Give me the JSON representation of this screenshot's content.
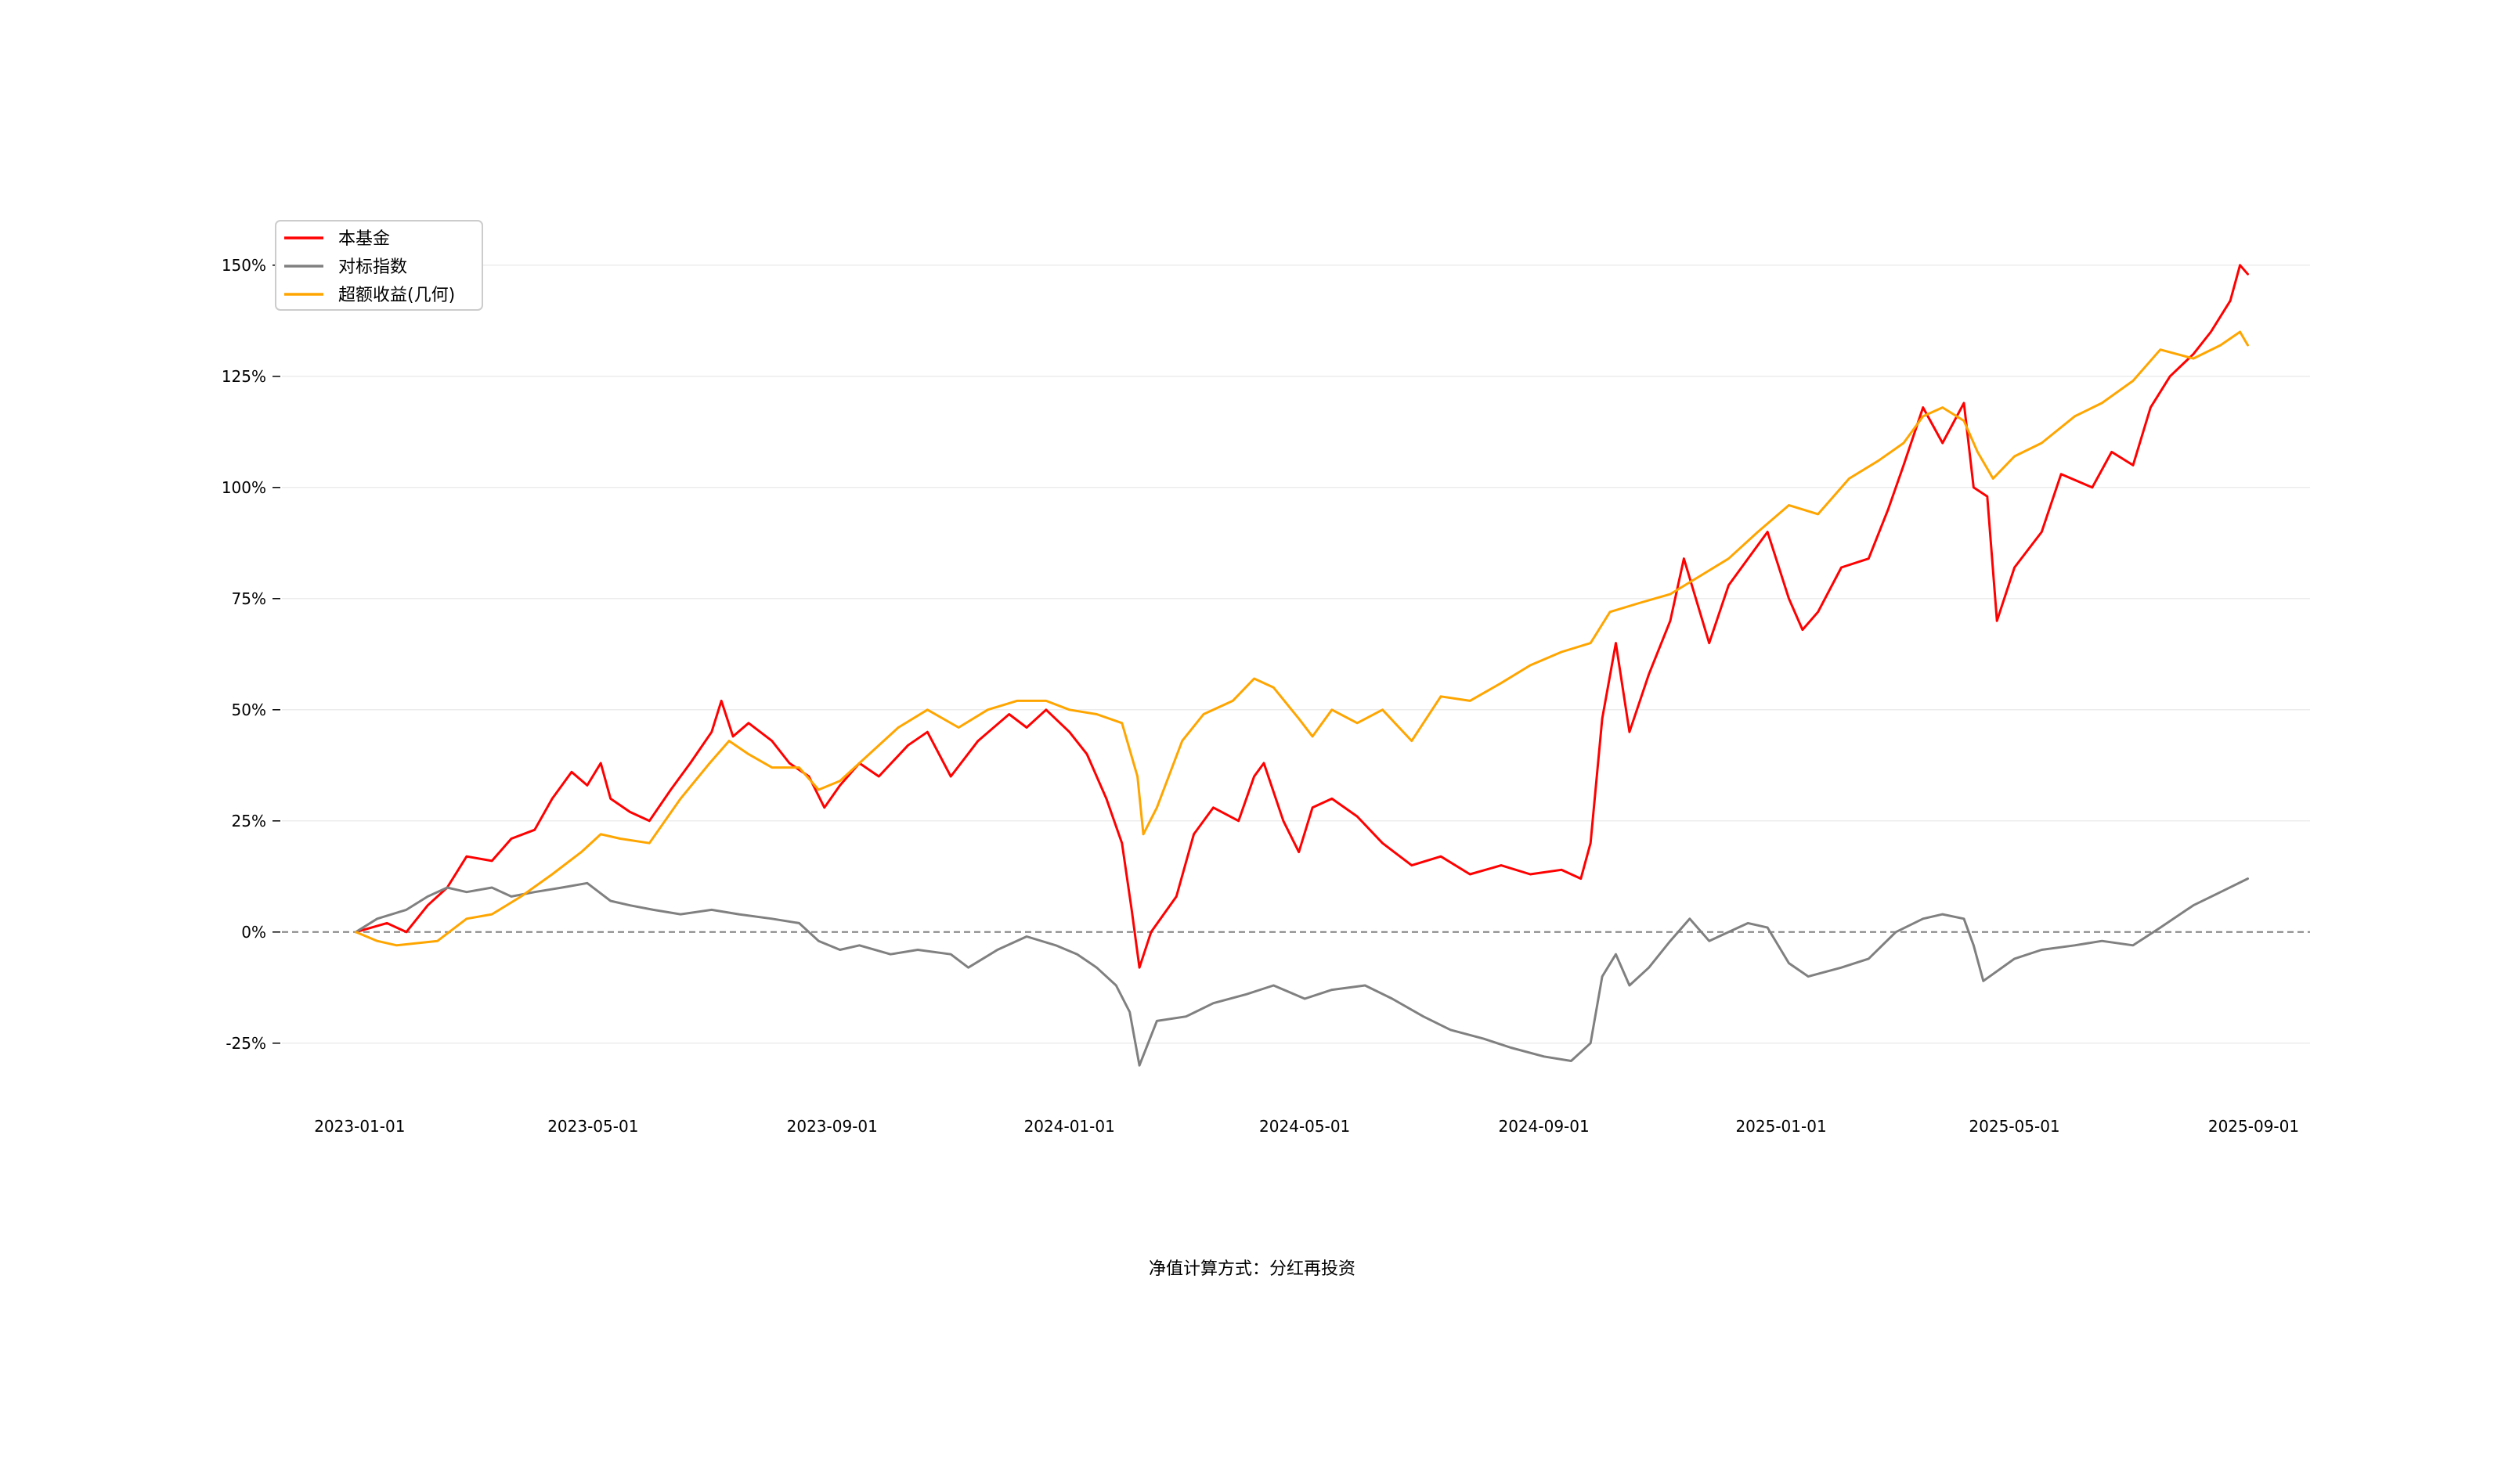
{
  "chart_data": {
    "type": "line",
    "title": "",
    "xlabel": "",
    "ylabel": "",
    "footnote": "净值计算方式：分红再投资",
    "x_tick_labels": [
      "2023-01-01",
      "2023-05-01",
      "2023-09-01",
      "2024-01-01",
      "2024-05-01",
      "2024-09-01",
      "2025-01-01",
      "2025-05-01",
      "2025-09-01"
    ],
    "y_tick_labels": [
      "-25%",
      "0%",
      "25%",
      "50%",
      "75%",
      "100%",
      "125%",
      "150%"
    ],
    "y_ticks": [
      -25,
      0,
      25,
      50,
      75,
      100,
      125,
      150
    ],
    "xlim": [
      "2022-11-22",
      "2025-09-30"
    ],
    "ylim": [
      -40,
      160
    ],
    "zero_line": true,
    "grid": "horizontal",
    "legend_position": "top-left",
    "series": [
      {
        "name": "本基金",
        "color": "#ff0000",
        "points": [
          [
            "2022-12-30",
            0
          ],
          [
            "2023-01-15",
            2
          ],
          [
            "2023-01-25",
            0
          ],
          [
            "2023-02-05",
            6
          ],
          [
            "2023-02-15",
            10
          ],
          [
            "2023-02-25",
            17
          ],
          [
            "2023-03-10",
            16
          ],
          [
            "2023-03-20",
            21
          ],
          [
            "2023-04-01",
            23
          ],
          [
            "2023-04-10",
            30
          ],
          [
            "2023-04-20",
            36
          ],
          [
            "2023-04-28",
            33
          ],
          [
            "2023-05-05",
            38
          ],
          [
            "2023-05-10",
            30
          ],
          [
            "2023-05-20",
            27
          ],
          [
            "2023-05-30",
            25
          ],
          [
            "2023-06-10",
            32
          ],
          [
            "2023-06-20",
            38
          ],
          [
            "2023-07-01",
            45
          ],
          [
            "2023-07-06",
            52
          ],
          [
            "2023-07-12",
            44
          ],
          [
            "2023-07-20",
            47
          ],
          [
            "2023-08-01",
            43
          ],
          [
            "2023-08-10",
            38
          ],
          [
            "2023-08-20",
            35
          ],
          [
            "2023-08-28",
            28
          ],
          [
            "2023-09-05",
            33
          ],
          [
            "2023-09-15",
            38
          ],
          [
            "2023-09-25",
            35
          ],
          [
            "2023-10-10",
            42
          ],
          [
            "2023-10-20",
            45
          ],
          [
            "2023-11-01",
            35
          ],
          [
            "2023-11-15",
            43
          ],
          [
            "2023-12-01",
            49
          ],
          [
            "2023-12-10",
            46
          ],
          [
            "2023-12-20",
            50
          ],
          [
            "2024-01-01",
            45
          ],
          [
            "2024-01-10",
            40
          ],
          [
            "2024-01-20",
            30
          ],
          [
            "2024-01-28",
            20
          ],
          [
            "2024-02-02",
            5
          ],
          [
            "2024-02-06",
            -8
          ],
          [
            "2024-02-12",
            0
          ],
          [
            "2024-02-25",
            8
          ],
          [
            "2024-03-05",
            22
          ],
          [
            "2024-03-15",
            28
          ],
          [
            "2024-03-28",
            25
          ],
          [
            "2024-04-05",
            35
          ],
          [
            "2024-04-10",
            38
          ],
          [
            "2024-04-20",
            25
          ],
          [
            "2024-04-28",
            18
          ],
          [
            "2024-05-05",
            28
          ],
          [
            "2024-05-15",
            30
          ],
          [
            "2024-05-28",
            26
          ],
          [
            "2024-06-10",
            20
          ],
          [
            "2024-06-25",
            15
          ],
          [
            "2024-07-10",
            17
          ],
          [
            "2024-07-25",
            13
          ],
          [
            "2024-08-10",
            15
          ],
          [
            "2024-08-25",
            13
          ],
          [
            "2024-09-10",
            14
          ],
          [
            "2024-09-20",
            12
          ],
          [
            "2024-09-25",
            20
          ],
          [
            "2024-10-01",
            48
          ],
          [
            "2024-10-08",
            65
          ],
          [
            "2024-10-15",
            45
          ],
          [
            "2024-10-25",
            58
          ],
          [
            "2024-11-05",
            70
          ],
          [
            "2024-11-12",
            84
          ],
          [
            "2024-11-25",
            65
          ],
          [
            "2024-12-05",
            78
          ],
          [
            "2024-12-15",
            84
          ],
          [
            "2024-12-25",
            90
          ],
          [
            "2025-01-05",
            75
          ],
          [
            "2025-01-12",
            68
          ],
          [
            "2025-01-20",
            72
          ],
          [
            "2025-02-01",
            82
          ],
          [
            "2025-02-15",
            84
          ],
          [
            "2025-02-25",
            95
          ],
          [
            "2025-03-05",
            105
          ],
          [
            "2025-03-15",
            118
          ],
          [
            "2025-03-25",
            110
          ],
          [
            "2025-04-05",
            119
          ],
          [
            "2025-04-10",
            100
          ],
          [
            "2025-04-17",
            98
          ],
          [
            "2025-04-22",
            70
          ],
          [
            "2025-05-01",
            82
          ],
          [
            "2025-05-15",
            90
          ],
          [
            "2025-05-25",
            103
          ],
          [
            "2025-06-10",
            100
          ],
          [
            "2025-06-20",
            108
          ],
          [
            "2025-07-01",
            105
          ],
          [
            "2025-07-10",
            118
          ],
          [
            "2025-07-20",
            125
          ],
          [
            "2025-08-01",
            130
          ],
          [
            "2025-08-10",
            135
          ],
          [
            "2025-08-20",
            142
          ],
          [
            "2025-08-25",
            150
          ],
          [
            "2025-08-29",
            148
          ]
        ]
      },
      {
        "name": "对标指数",
        "color": "#808080",
        "points": [
          [
            "2022-12-30",
            0
          ],
          [
            "2023-01-10",
            3
          ],
          [
            "2023-01-25",
            5
          ],
          [
            "2023-02-05",
            8
          ],
          [
            "2023-02-15",
            10
          ],
          [
            "2023-02-25",
            9
          ],
          [
            "2023-03-10",
            10
          ],
          [
            "2023-03-20",
            8
          ],
          [
            "2023-04-01",
            9
          ],
          [
            "2023-04-15",
            10
          ],
          [
            "2023-04-28",
            11
          ],
          [
            "2023-05-10",
            7
          ],
          [
            "2023-05-20",
            6
          ],
          [
            "2023-06-01",
            5
          ],
          [
            "2023-06-15",
            4
          ],
          [
            "2023-07-01",
            5
          ],
          [
            "2023-07-15",
            4
          ],
          [
            "2023-08-01",
            3
          ],
          [
            "2023-08-15",
            2
          ],
          [
            "2023-08-25",
            -2
          ],
          [
            "2023-09-05",
            -4
          ],
          [
            "2023-09-15",
            -3
          ],
          [
            "2023-10-01",
            -5
          ],
          [
            "2023-10-15",
            -4
          ],
          [
            "2023-11-01",
            -5
          ],
          [
            "2023-11-10",
            -8
          ],
          [
            "2023-11-25",
            -4
          ],
          [
            "2023-12-10",
            -1
          ],
          [
            "2023-12-25",
            -3
          ],
          [
            "2024-01-05",
            -5
          ],
          [
            "2024-01-15",
            -8
          ],
          [
            "2024-01-25",
            -12
          ],
          [
            "2024-02-01",
            -18
          ],
          [
            "2024-02-06",
            -30
          ],
          [
            "2024-02-15",
            -20
          ],
          [
            "2024-03-01",
            -19
          ],
          [
            "2024-03-15",
            -16
          ],
          [
            "2024-04-01",
            -14
          ],
          [
            "2024-04-15",
            -12
          ],
          [
            "2024-05-01",
            -15
          ],
          [
            "2024-05-15",
            -13
          ],
          [
            "2024-06-01",
            -12
          ],
          [
            "2024-06-15",
            -15
          ],
          [
            "2024-07-01",
            -19
          ],
          [
            "2024-07-15",
            -22
          ],
          [
            "2024-08-01",
            -24
          ],
          [
            "2024-08-15",
            -26
          ],
          [
            "2024-09-01",
            -28
          ],
          [
            "2024-09-15",
            -29
          ],
          [
            "2024-09-25",
            -25
          ],
          [
            "2024-10-01",
            -10
          ],
          [
            "2024-10-08",
            -5
          ],
          [
            "2024-10-15",
            -12
          ],
          [
            "2024-10-25",
            -8
          ],
          [
            "2024-11-05",
            -2
          ],
          [
            "2024-11-15",
            3
          ],
          [
            "2024-11-25",
            -2
          ],
          [
            "2024-12-05",
            0
          ],
          [
            "2024-12-15",
            2
          ],
          [
            "2024-12-25",
            1
          ],
          [
            "2025-01-05",
            -7
          ],
          [
            "2025-01-15",
            -10
          ],
          [
            "2025-02-01",
            -8
          ],
          [
            "2025-02-15",
            -6
          ],
          [
            "2025-03-01",
            0
          ],
          [
            "2025-03-15",
            3
          ],
          [
            "2025-03-25",
            4
          ],
          [
            "2025-04-05",
            3
          ],
          [
            "2025-04-10",
            -3
          ],
          [
            "2025-04-15",
            -11
          ],
          [
            "2025-05-01",
            -6
          ],
          [
            "2025-05-15",
            -4
          ],
          [
            "2025-06-01",
            -3
          ],
          [
            "2025-06-15",
            -2
          ],
          [
            "2025-07-01",
            -3
          ],
          [
            "2025-07-15",
            1
          ],
          [
            "2025-08-01",
            6
          ],
          [
            "2025-08-15",
            9
          ],
          [
            "2025-08-29",
            12
          ]
        ]
      },
      {
        "name": "超额收益(几何)",
        "color": "#ffa500",
        "points": [
          [
            "2022-12-30",
            0
          ],
          [
            "2023-01-10",
            -2
          ],
          [
            "2023-01-20",
            -3
          ],
          [
            "2023-02-10",
            -2
          ],
          [
            "2023-02-25",
            3
          ],
          [
            "2023-03-10",
            4
          ],
          [
            "2023-03-25",
            8
          ],
          [
            "2023-04-10",
            13
          ],
          [
            "2023-04-25",
            18
          ],
          [
            "2023-05-05",
            22
          ],
          [
            "2023-05-15",
            21
          ],
          [
            "2023-05-30",
            20
          ],
          [
            "2023-06-15",
            30
          ],
          [
            "2023-06-30",
            38
          ],
          [
            "2023-07-10",
            43
          ],
          [
            "2023-07-20",
            40
          ],
          [
            "2023-08-01",
            37
          ],
          [
            "2023-08-15",
            37
          ],
          [
            "2023-08-25",
            32
          ],
          [
            "2023-09-05",
            34
          ],
          [
            "2023-09-20",
            40
          ],
          [
            "2023-10-05",
            46
          ],
          [
            "2023-10-20",
            50
          ],
          [
            "2023-11-05",
            46
          ],
          [
            "2023-11-20",
            50
          ],
          [
            "2023-12-05",
            52
          ],
          [
            "2023-12-20",
            52
          ],
          [
            "2024-01-01",
            50
          ],
          [
            "2024-01-15",
            49
          ],
          [
            "2024-01-28",
            47
          ],
          [
            "2024-02-05",
            35
          ],
          [
            "2024-02-08",
            22
          ],
          [
            "2024-02-15",
            28
          ],
          [
            "2024-02-28",
            43
          ],
          [
            "2024-03-10",
            49
          ],
          [
            "2024-03-25",
            52
          ],
          [
            "2024-04-05",
            57
          ],
          [
            "2024-04-15",
            55
          ],
          [
            "2024-04-28",
            48
          ],
          [
            "2024-05-05",
            44
          ],
          [
            "2024-05-15",
            50
          ],
          [
            "2024-05-28",
            47
          ],
          [
            "2024-06-10",
            50
          ],
          [
            "2024-06-25",
            43
          ],
          [
            "2024-07-10",
            53
          ],
          [
            "2024-07-25",
            52
          ],
          [
            "2024-08-10",
            56
          ],
          [
            "2024-08-25",
            60
          ],
          [
            "2024-09-10",
            63
          ],
          [
            "2024-09-25",
            65
          ],
          [
            "2024-10-05",
            72
          ],
          [
            "2024-10-20",
            74
          ],
          [
            "2024-11-05",
            76
          ],
          [
            "2024-11-20",
            80
          ],
          [
            "2024-12-05",
            84
          ],
          [
            "2024-12-20",
            90
          ],
          [
            "2025-01-05",
            96
          ],
          [
            "2025-01-20",
            94
          ],
          [
            "2025-02-05",
            102
          ],
          [
            "2025-02-20",
            106
          ],
          [
            "2025-03-05",
            110
          ],
          [
            "2025-03-15",
            116
          ],
          [
            "2025-03-25",
            118
          ],
          [
            "2025-04-05",
            115
          ],
          [
            "2025-04-12",
            108
          ],
          [
            "2025-04-20",
            102
          ],
          [
            "2025-05-01",
            107
          ],
          [
            "2025-05-15",
            110
          ],
          [
            "2025-06-01",
            116
          ],
          [
            "2025-06-15",
            119
          ],
          [
            "2025-07-01",
            124
          ],
          [
            "2025-07-15",
            131
          ],
          [
            "2025-08-01",
            129
          ],
          [
            "2025-08-15",
            132
          ],
          [
            "2025-08-25",
            135
          ],
          [
            "2025-08-29",
            132
          ]
        ]
      }
    ]
  }
}
